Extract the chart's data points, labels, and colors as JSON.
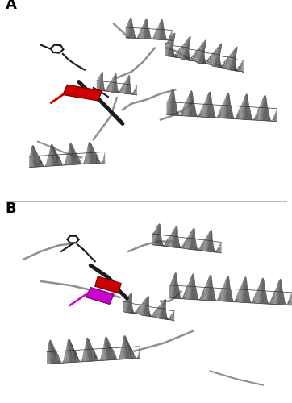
{
  "figure_width": 3.62,
  "figure_height": 5.0,
  "dpi": 100,
  "background_color": "#ffffff",
  "panel_A_label": "A",
  "panel_B_label": "B",
  "label_fontsize": 13,
  "label_fontweight": "bold",
  "gray_color": "#787878",
  "dark_gray": "#404040",
  "light_gray": "#a0a0a0",
  "black_color": "#1a1a1a",
  "red_color": "#cc0000",
  "magenta_color": "#cc00cc",
  "loop_color": "#909090",
  "edge_color": "#333333"
}
